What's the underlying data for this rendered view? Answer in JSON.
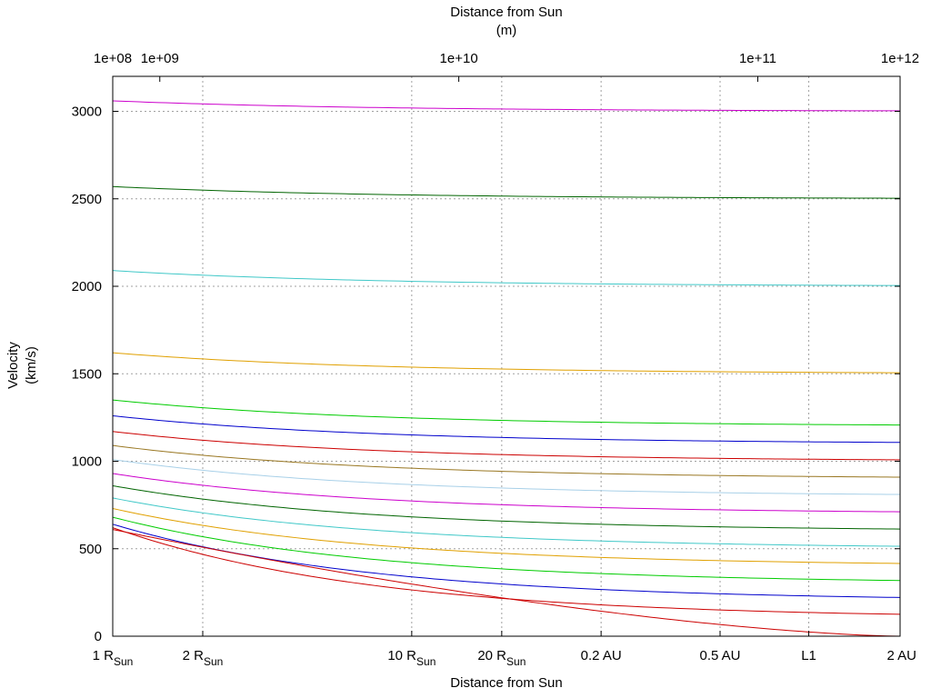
{
  "chart_data": {
    "type": "line",
    "title": "",
    "xscale": "log",
    "x_units": "m",
    "xlim": [
      696000000.0,
      299200000000.0
    ],
    "ylim": [
      0,
      3200
    ],
    "grid": true,
    "legend": "none",
    "top_axis": {
      "label": "Distance from Sun",
      "units_label": "(m)",
      "ticks": [
        {
          "value": 100000000.0,
          "label": "1e+08"
        },
        {
          "value": 1000000000.0,
          "label": "1e+09"
        },
        {
          "value": 10000000000.0,
          "label": "1e+10"
        },
        {
          "value": 100000000000.0,
          "label": "1e+11"
        },
        {
          "value": 1000000000000.0,
          "label": "1e+12"
        }
      ]
    },
    "bottom_axis": {
      "label": "Distance from Sun",
      "ticks": [
        {
          "value": 696000000.0,
          "label": "1 R",
          "sub": "Sun"
        },
        {
          "value": 1392000000.0,
          "label": "2 R",
          "sub": "Sun"
        },
        {
          "value": 6960000000.0,
          "label": "10 R",
          "sub": "Sun"
        },
        {
          "value": 13920000000.0,
          "label": "20 R",
          "sub": "Sun"
        },
        {
          "value": 29920000000.0,
          "label": "0.2 AU",
          "sub": ""
        },
        {
          "value": 74800000000.0,
          "label": "0.5 AU",
          "sub": ""
        },
        {
          "value": 148100000000.0,
          "label": "L1",
          "sub": ""
        },
        {
          "value": 299200000000.0,
          "label": "2 AU",
          "sub": ""
        }
      ]
    },
    "y_axis": {
      "label": "Velocity",
      "units_label": "(km/s)",
      "ticks": [
        0,
        500,
        1000,
        1500,
        2000,
        2500,
        3000
      ]
    },
    "series": [
      {
        "name": "v_inf=3000",
        "color": "#cc00cc",
        "vinf": 3000,
        "start": 3060
      },
      {
        "name": "v_inf=2500",
        "color": "#006400",
        "vinf": 2500,
        "start": 2570
      },
      {
        "name": "v_inf=2000",
        "color": "#40c8c8",
        "vinf": 2000,
        "start": 2090
      },
      {
        "name": "v_inf=1500",
        "color": "#e0a000",
        "vinf": 1500,
        "start": 1620
      },
      {
        "name": "v_inf=1200",
        "color": "#00cc00",
        "vinf": 1200,
        "start": 1350
      },
      {
        "name": "v_inf=1100",
        "color": "#0000cc",
        "vinf": 1100,
        "start": 1260
      },
      {
        "name": "v_inf=1000",
        "color": "#cc0000",
        "vinf": 1000,
        "start": 1170
      },
      {
        "name": "v_inf=900",
        "color": "#997722",
        "vinf": 900,
        "start": 1090
      },
      {
        "name": "v_inf=800",
        "color": "#a8d0e8",
        "vinf": 800,
        "start": 1010
      },
      {
        "name": "v_inf=700",
        "color": "#cc00cc",
        "vinf": 700,
        "start": 930
      },
      {
        "name": "v_inf=600",
        "color": "#006400",
        "vinf": 600,
        "start": 860
      },
      {
        "name": "v_inf=500",
        "color": "#40c8c8",
        "vinf": 500,
        "start": 790
      },
      {
        "name": "v_inf=400",
        "color": "#e0a000",
        "vinf": 400,
        "start": 730
      },
      {
        "name": "v_inf=300",
        "color": "#00cc00",
        "vinf": 300,
        "start": 680
      },
      {
        "name": "v_inf=200",
        "color": "#0000cc",
        "vinf": 200,
        "start": 640
      },
      {
        "name": "v_inf=100",
        "color": "#cc0000",
        "vinf": 100,
        "start": 620
      },
      {
        "name": "v_inf=0",
        "color": "#cc0000",
        "vinf": 0,
        "start": 610
      }
    ]
  }
}
